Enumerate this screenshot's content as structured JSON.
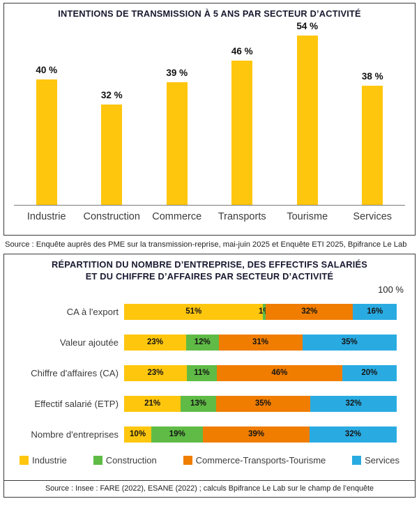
{
  "chart_data": [
    {
      "type": "bar",
      "title": "INTENTIONS DE TRANSMISSION À 5 ANS PAR SECTEUR D’ACTIVITÉ",
      "categories": [
        "Industrie",
        "Construction",
        "Commerce",
        "Transports",
        "Tourisme",
        "Services"
      ],
      "values": [
        40,
        32,
        39,
        46,
        54,
        38
      ],
      "unit": "%",
      "bar_color": "#FFC60E",
      "ylim": [
        0,
        60
      ],
      "grid": false,
      "legend_position": "none",
      "source": "Source : Enquête auprès des PME sur la transmission-reprise, mai-juin 2025 et Enquête ETI 2025, Bpifrance Le Lab"
    },
    {
      "type": "bar",
      "orientation": "horizontal-stacked",
      "title_lines": [
        "RÉPARTITION DU NOMBRE D’ENTREPRISE, DES EFFECTIFS SALARIÉS",
        "ET DU CHIFFRE D’AFFAIRES PAR SECTEUR D’ACTIVITÉ"
      ],
      "axis_max_label": "100 %",
      "categories": [
        "CA à l'export",
        "Valeur ajoutée",
        "Chiffre d'affaires (CA)",
        "Effectif salarié (ETP)",
        "Nombre d'entreprises"
      ],
      "series": [
        {
          "name": "Industrie",
          "color": "#FFC60E",
          "values": [
            51,
            23,
            23,
            21,
            10
          ]
        },
        {
          "name": "Construction",
          "color": "#5FBB46",
          "values": [
            1,
            12,
            11,
            13,
            19
          ]
        },
        {
          "name": "Commerce-Transports-Tourisme",
          "color": "#F07D00",
          "values": [
            32,
            31,
            46,
            35,
            39
          ]
        },
        {
          "name": "Services",
          "color": "#29ABE2",
          "values": [
            16,
            35,
            20,
            32,
            32
          ]
        }
      ],
      "unit": "%",
      "xlim": [
        0,
        100
      ],
      "grid": false,
      "legend_position": "bottom",
      "source": "Source : Insee : FARE (2022), ESANE (2022) ; calculs Bpifrance Le Lab sur le champ de l’enquête"
    }
  ]
}
